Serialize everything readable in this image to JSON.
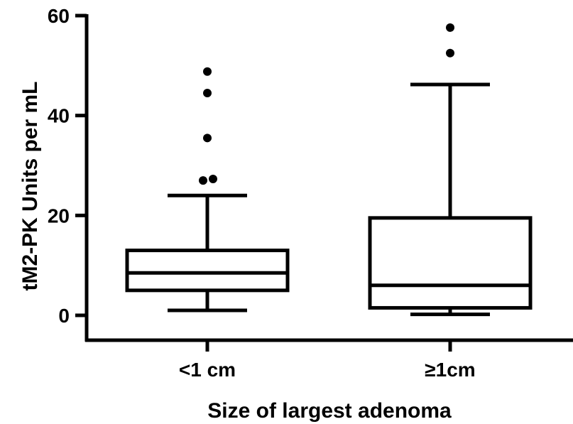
{
  "chart_data": {
    "type": "box",
    "xlabel": "Size of largest adenoma",
    "ylabel": "tM2-PK Units per mL",
    "ylim": [
      0,
      60
    ],
    "yticks": [
      0,
      20,
      40,
      60
    ],
    "ytick_labels": [
      "0",
      "20",
      "40",
      "60"
    ],
    "grid": false,
    "legend": "none",
    "groups": [
      {
        "label": "<1 cm",
        "whisker_low": 1,
        "q1": 5,
        "median": 8.5,
        "q3": 13,
        "whisker_high": 24,
        "outliers": [
          27,
          27.3,
          35.5,
          44.5,
          48.8
        ]
      },
      {
        "label": "≥1cm",
        "whisker_low": 0.2,
        "q1": 1.5,
        "median": 6,
        "q3": 19.5,
        "whisker_high": 46.2,
        "outliers": [
          52.5,
          57.6
        ]
      }
    ]
  }
}
